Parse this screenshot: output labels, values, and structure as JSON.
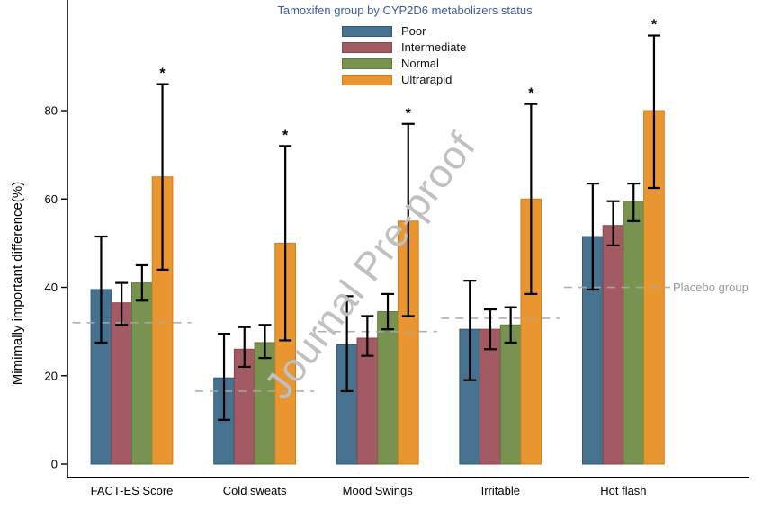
{
  "figure": {
    "watermark": "Journal Pre-proof",
    "significance_marker": "*"
  },
  "legend": {
    "title": "Tamoxifen group by CYP2D6 metabolizers status",
    "title_color": "#3a5ba9"
  },
  "chart_data": {
    "type": "bar",
    "title": "Tamoxifen group by CYP2D6 metabolizers status",
    "xlabel": "",
    "ylabel": "Mimimally important difference(%)",
    "ylim": [
      0,
      105
    ],
    "yticks": [
      0,
      20,
      40,
      60,
      80
    ],
    "grid": false,
    "legend_position": "top-center",
    "categories": [
      "FACT-ES Score",
      "Cold sweats",
      "Mood Swings",
      "Irritable",
      "Hot flash"
    ],
    "series": [
      {
        "name": "Poor",
        "color": "#46718f",
        "edge_color": "#2f5a7d",
        "values": [
          39.5,
          19.5,
          27,
          30.5,
          51.5
        ],
        "ci_low": [
          27.5,
          10,
          16.5,
          19,
          39.5
        ],
        "ci_high": [
          51.5,
          29.5,
          38,
          41.5,
          63.5
        ],
        "significant": [
          false,
          false,
          false,
          false,
          false
        ]
      },
      {
        "name": "Intermediate",
        "color": "#a35a63",
        "edge_color": "#8a4350",
        "values": [
          36.5,
          26,
          28.5,
          30.5,
          54
        ],
        "ci_low": [
          31.5,
          22,
          24.5,
          26,
          49.5
        ],
        "ci_high": [
          41,
          31,
          33.5,
          35,
          59.5
        ],
        "significant": [
          false,
          false,
          false,
          false,
          false
        ]
      },
      {
        "name": "Normal",
        "color": "#78934f",
        "edge_color": "#5e7a3a",
        "values": [
          41,
          27.5,
          34.5,
          31.5,
          59.5
        ],
        "ci_low": [
          37,
          24,
          30.5,
          27.5,
          55
        ],
        "ci_high": [
          45,
          31.5,
          38.5,
          35.5,
          63.5
        ],
        "significant": [
          false,
          false,
          false,
          false,
          false
        ]
      },
      {
        "name": "Ultrarapid",
        "color": "#e99530",
        "edge_color": "#cf7f1b",
        "values": [
          65,
          50,
          55,
          60,
          80
        ],
        "ci_low": [
          44,
          28,
          33.5,
          38.5,
          62.5
        ],
        "ci_high": [
          86,
          72,
          77,
          81.5,
          97
        ],
        "significant": [
          true,
          true,
          true,
          true,
          true
        ]
      }
    ],
    "placebo_line": {
      "label": "Placebo group",
      "values": [
        32,
        16.5,
        30,
        33,
        40
      ],
      "color": "#a8a8a8",
      "label_color": "#999999"
    },
    "error_bar_color": "#000000"
  }
}
